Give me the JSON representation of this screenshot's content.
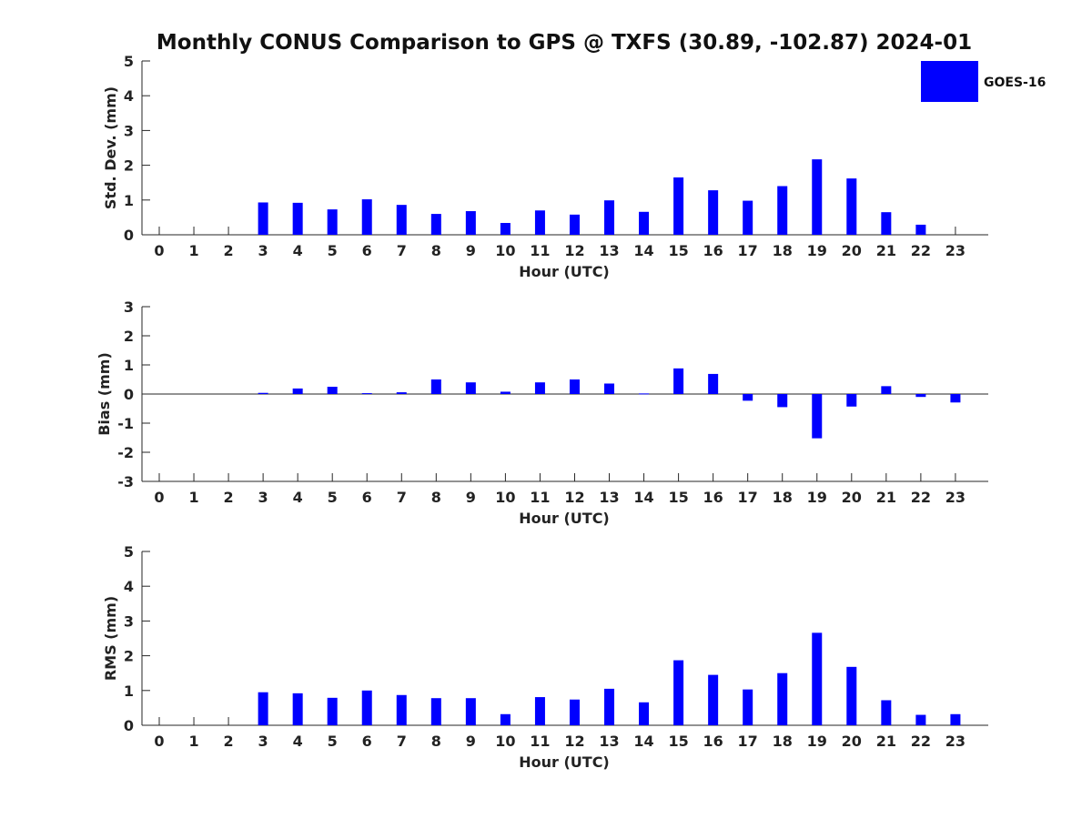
{
  "chart_data": [
    {
      "type": "bar",
      "title": "Monthly CONUS Comparison to GPS @ TXFS (30.89, -102.87) 2024-01",
      "xlabel": "Hour (UTC)",
      "ylabel": "Std. Dev. (mm)",
      "ylim": [
        0,
        5
      ],
      "yticks": [
        0,
        1,
        2,
        3,
        4,
        5
      ],
      "categories": [
        "0",
        "1",
        "2",
        "3",
        "4",
        "5",
        "6",
        "7",
        "8",
        "9",
        "10",
        "11",
        "12",
        "13",
        "14",
        "15",
        "16",
        "17",
        "18",
        "19",
        "20",
        "21",
        "22",
        "23"
      ],
      "series": [
        {
          "name": "GOES-16",
          "color": "#0000ff",
          "values": [
            null,
            null,
            null,
            0.93,
            0.92,
            0.73,
            1.02,
            0.86,
            0.6,
            0.68,
            0.34,
            0.7,
            0.58,
            0.99,
            0.66,
            1.65,
            1.28,
            0.98,
            1.4,
            2.17,
            1.62,
            0.65,
            0.29,
            null
          ]
        }
      ],
      "legend": {
        "entries": [
          "GOES-16"
        ],
        "placement": "top-right"
      },
      "grid": false
    },
    {
      "type": "bar",
      "xlabel": "Hour (UTC)",
      "ylabel": "Bias (mm)",
      "ylim": [
        -3,
        3
      ],
      "yticks": [
        -3,
        -2,
        -1,
        0,
        1,
        2,
        3
      ],
      "categories": [
        "0",
        "1",
        "2",
        "3",
        "4",
        "5",
        "6",
        "7",
        "8",
        "9",
        "10",
        "11",
        "12",
        "13",
        "14",
        "15",
        "16",
        "17",
        "18",
        "19",
        "20",
        "21",
        "22",
        "23"
      ],
      "series": [
        {
          "name": "GOES-16",
          "color": "#0000ff",
          "values": [
            null,
            null,
            null,
            0.04,
            0.19,
            0.25,
            0.03,
            0.06,
            0.5,
            0.4,
            0.08,
            0.4,
            0.5,
            0.36,
            0.02,
            0.88,
            0.69,
            -0.23,
            -0.45,
            -1.52,
            -0.43,
            0.27,
            -0.1,
            -0.29
          ]
        }
      ],
      "grid": false
    },
    {
      "type": "bar",
      "xlabel": "Hour (UTC)",
      "ylabel": "RMS (mm)",
      "ylim": [
        0,
        5
      ],
      "yticks": [
        0,
        1,
        2,
        3,
        4,
        5
      ],
      "categories": [
        "0",
        "1",
        "2",
        "3",
        "4",
        "5",
        "6",
        "7",
        "8",
        "9",
        "10",
        "11",
        "12",
        "13",
        "14",
        "15",
        "16",
        "17",
        "18",
        "19",
        "20",
        "21",
        "22",
        "23"
      ],
      "series": [
        {
          "name": "GOES-16",
          "color": "#0000ff",
          "values": [
            null,
            null,
            null,
            0.95,
            0.92,
            0.79,
            1.0,
            0.87,
            0.78,
            0.78,
            0.32,
            0.81,
            0.74,
            1.05,
            0.66,
            1.87,
            1.45,
            1.03,
            1.5,
            2.66,
            1.68,
            0.72,
            0.3,
            0.32
          ]
        }
      ],
      "grid": false
    }
  ]
}
